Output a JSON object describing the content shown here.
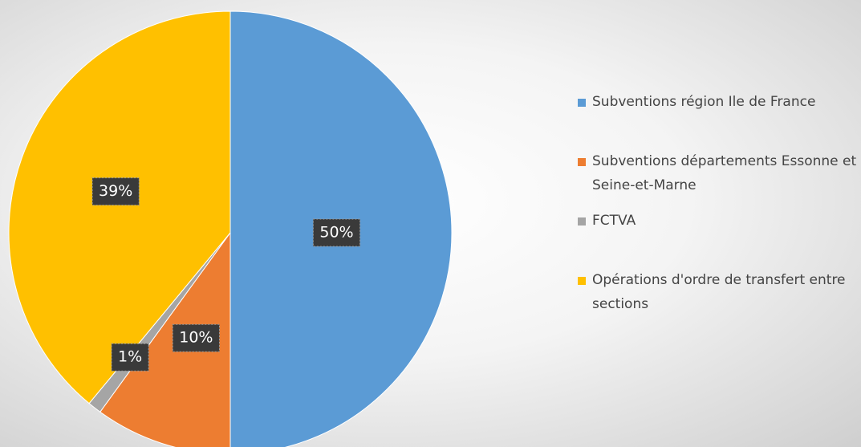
{
  "chart_data": {
    "type": "pie",
    "categories": [
      "Subventions région Ile de France",
      "Subventions départements Essonne et Seine-et-Marne",
      "FCTVA",
      "Opérations d'ordre de transfert entre sections"
    ],
    "values": [
      50,
      10,
      1,
      39
    ],
    "value_labels": [
      "50%",
      "10%",
      "1%",
      "39%"
    ],
    "colors": [
      "#5b9bd5",
      "#ed7d31",
      "#a5a5a5",
      "#ffc000"
    ],
    "legend": "right"
  }
}
